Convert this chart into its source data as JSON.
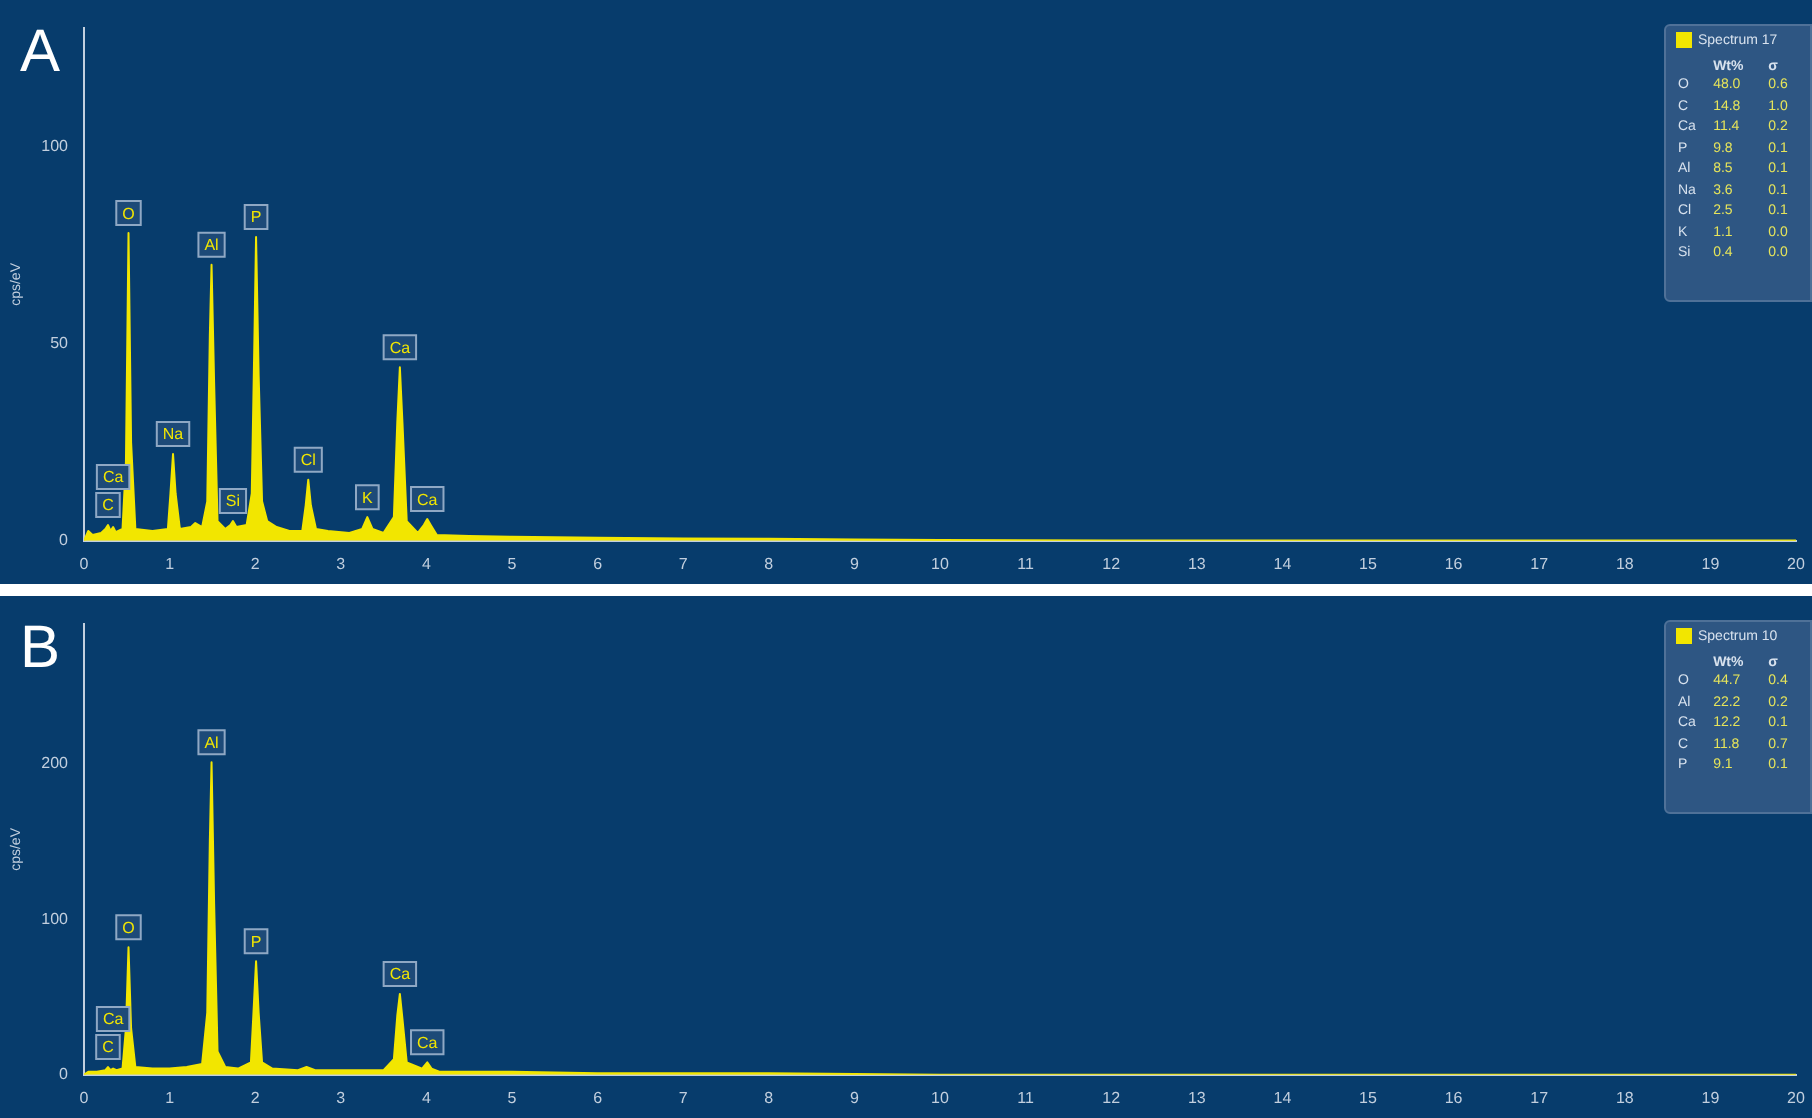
{
  "chart_data": [
    {
      "type": "area",
      "title": "A",
      "ylabel": "cps/eV",
      "xlim": [
        0,
        20
      ],
      "xticks": [
        0,
        1,
        2,
        3,
        4,
        5,
        6,
        7,
        8,
        9,
        10,
        11,
        12,
        13,
        14,
        15,
        16,
        17,
        18,
        19,
        20
      ],
      "ylim": [
        0,
        130
      ],
      "yticks": [
        0,
        50,
        100
      ],
      "grid": false,
      "legend": "top right",
      "series": [
        {
          "name": "Spectrum 17",
          "color": "#f2e600",
          "x": [
            0,
            0.05,
            0.1,
            0.2,
            0.25,
            0.28,
            0.31,
            0.34,
            0.37,
            0.45,
            0.49,
            0.52,
            0.55,
            0.6,
            0.8,
            0.98,
            1.01,
            1.04,
            1.07,
            1.12,
            1.25,
            1.3,
            1.38,
            1.44,
            1.47,
            1.49,
            1.52,
            1.56,
            1.65,
            1.71,
            1.74,
            1.78,
            1.9,
            1.96,
            1.99,
            2.01,
            2.04,
            2.08,
            2.14,
            2.25,
            2.4,
            2.55,
            2.59,
            2.62,
            2.65,
            2.71,
            2.85,
            3.1,
            3.25,
            3.31,
            3.37,
            3.5,
            3.62,
            3.66,
            3.69,
            3.72,
            3.77,
            3.9,
            3.97,
            4.01,
            4.05,
            4.12,
            4.5,
            5,
            6,
            7,
            8,
            9,
            10,
            12,
            15,
            20
          ],
          "values": [
            0,
            2.5,
            1.5,
            2,
            3,
            4,
            2.5,
            3.5,
            2.2,
            3,
            20,
            78,
            25,
            3,
            2.5,
            3,
            12,
            22,
            12,
            3,
            3.5,
            4.5,
            3.5,
            10,
            52,
            70,
            40,
            5,
            3,
            4,
            5,
            3.5,
            4,
            12,
            50,
            77,
            42,
            10,
            5,
            3.5,
            2.5,
            2.5,
            9,
            15.5,
            9,
            3,
            2.5,
            2,
            3,
            6,
            3,
            2,
            6,
            30,
            44,
            30,
            5,
            2,
            4,
            5.5,
            4,
            1.5,
            1.2,
            1,
            0.8,
            0.6,
            0.5,
            0.3,
            0.2,
            0.1,
            0.1,
            0.1
          ]
        }
      ],
      "annotations": [
        {
          "text": "C",
          "x": 0.28,
          "y": 4
        },
        {
          "text": "Ca",
          "x": 0.34,
          "y": 3.5
        },
        {
          "text": "O",
          "x": 0.52,
          "y": 78
        },
        {
          "text": "Na",
          "x": 1.04,
          "y": 22
        },
        {
          "text": "Al",
          "x": 1.49,
          "y": 70
        },
        {
          "text": "Si",
          "x": 1.74,
          "y": 5
        },
        {
          "text": "P",
          "x": 2.01,
          "y": 77
        },
        {
          "text": "Cl",
          "x": 2.62,
          "y": 15.5
        },
        {
          "text": "K",
          "x": 3.31,
          "y": 6
        },
        {
          "text": "Ca",
          "x": 3.69,
          "y": 44
        },
        {
          "text": "Ca",
          "x": 4.01,
          "y": 5.5
        }
      ]
    },
    {
      "type": "other",
      "categories": [
        "O",
        "C",
        "Ca",
        "P",
        "Al",
        "Na",
        "Cl",
        "K",
        "Si"
      ],
      "series": [
        {
          "name": "Wt%",
          "values": [
            48.0,
            14.8,
            11.4,
            9.8,
            8.5,
            3.6,
            2.5,
            1.1,
            0.4
          ],
          "value_labels": [
            "48.0",
            "14.8",
            "11.4",
            "9.8",
            "8.5",
            "3.6",
            "2.5",
            "1.1",
            "0.4"
          ]
        },
        {
          "name": "σ",
          "values": [
            0.6,
            1.0,
            0.2,
            0.1,
            0.1,
            0.1,
            0.1,
            0.0,
            0.0
          ],
          "value_labels": [
            "0.6",
            "1.0",
            "0.2",
            "0.1",
            "0.1",
            "0.1",
            "0.1",
            "0.0",
            "0.0"
          ]
        }
      ]
    },
    {
      "type": "area",
      "title": "B",
      "ylabel": "cps/eV",
      "xlim": [
        0,
        20
      ],
      "xticks": [
        0,
        1,
        2,
        3,
        4,
        5,
        6,
        7,
        8,
        9,
        10,
        11,
        12,
        13,
        14,
        15,
        16,
        17,
        18,
        19,
        20
      ],
      "ylim": [
        0,
        290
      ],
      "yticks": [
        0,
        100,
        200
      ],
      "grid": false,
      "legend": "top right",
      "series": [
        {
          "name": "Spectrum 10",
          "color": "#f2e600",
          "x": [
            0,
            0.05,
            0.15,
            0.25,
            0.28,
            0.31,
            0.34,
            0.38,
            0.45,
            0.49,
            0.52,
            0.55,
            0.6,
            0.8,
            1.0,
            1.2,
            1.38,
            1.44,
            1.47,
            1.49,
            1.52,
            1.56,
            1.65,
            1.8,
            1.95,
            1.98,
            2.01,
            2.04,
            2.08,
            2.2,
            2.5,
            2.6,
            2.7,
            3.0,
            3.5,
            3.62,
            3.66,
            3.69,
            3.72,
            3.77,
            3.95,
            4.01,
            4.06,
            4.15,
            5,
            6,
            8,
            10,
            15,
            20
          ],
          "values": [
            0,
            2,
            2,
            3,
            5,
            3,
            4,
            3,
            4,
            30,
            82,
            30,
            5,
            4,
            4,
            5,
            7,
            40,
            150,
            201,
            110,
            15,
            5,
            4,
            8,
            40,
            73,
            40,
            8,
            4,
            3,
            5,
            3,
            3,
            3,
            10,
            38,
            52,
            36,
            8,
            4,
            8,
            4,
            2,
            2,
            1,
            1,
            0,
            0,
            0
          ]
        }
      ],
      "annotations": [
        {
          "text": "C",
          "x": 0.28,
          "y": 5
        },
        {
          "text": "Ca",
          "x": 0.34,
          "y": 4
        },
        {
          "text": "O",
          "x": 0.52,
          "y": 82
        },
        {
          "text": "Al",
          "x": 1.49,
          "y": 201
        },
        {
          "text": "P",
          "x": 2.01,
          "y": 73
        },
        {
          "text": "Ca",
          "x": 3.69,
          "y": 52
        },
        {
          "text": "Ca",
          "x": 4.01,
          "y": 8
        }
      ]
    },
    {
      "type": "other",
      "categories": [
        "O",
        "Al",
        "Ca",
        "C",
        "P"
      ],
      "series": [
        {
          "name": "Wt%",
          "values": [
            44.7,
            22.2,
            12.2,
            11.8,
            9.1
          ],
          "value_labels": [
            "44.7",
            "22.2",
            "12.2",
            "11.8",
            "9.1"
          ]
        },
        {
          "name": "σ",
          "values": [
            0.4,
            0.2,
            0.1,
            0.7,
            0.1
          ],
          "value_labels": [
            "0.4",
            "0.2",
            "0.1",
            "0.7",
            "0.1"
          ]
        }
      ]
    }
  ]
}
